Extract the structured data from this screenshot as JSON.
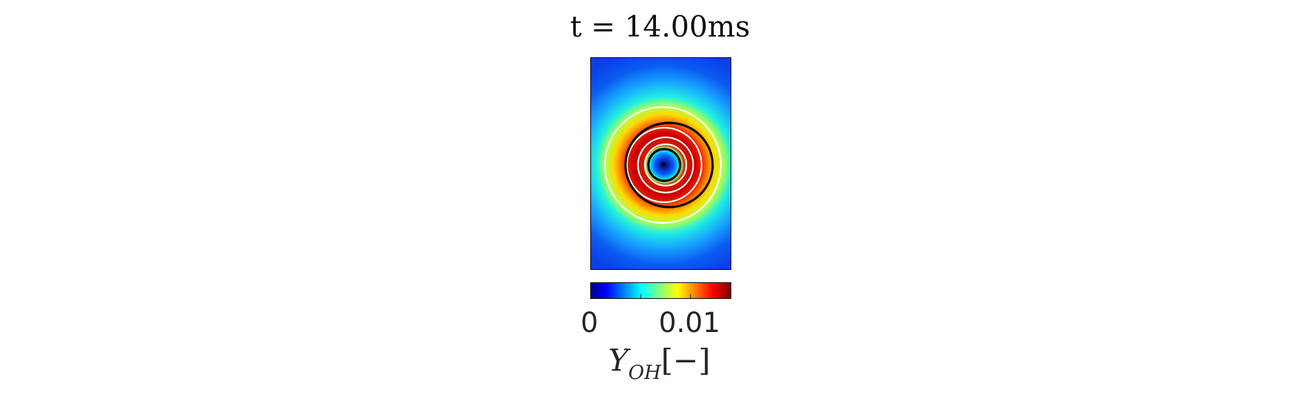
{
  "chart_data": {
    "type": "heatmap",
    "title": "t = 14.00ms",
    "colormap": "jet",
    "colorbar": {
      "range": [
        0,
        0.014
      ],
      "ticks": [
        0,
        0.005,
        0.01
      ],
      "tick_labels": [
        "0",
        "0.01"
      ],
      "label_main": "Y",
      "label_sub": "OH",
      "label_unit": "[−]",
      "placement": "bottom"
    },
    "field": {
      "description_values": {
        "background": 0.0,
        "peak_ring": 0.014,
        "core_center": 0.002
      }
    },
    "contours": [
      {
        "color": "#ffffff",
        "count": 4
      },
      {
        "color": "#000000",
        "count": 2
      }
    ]
  }
}
